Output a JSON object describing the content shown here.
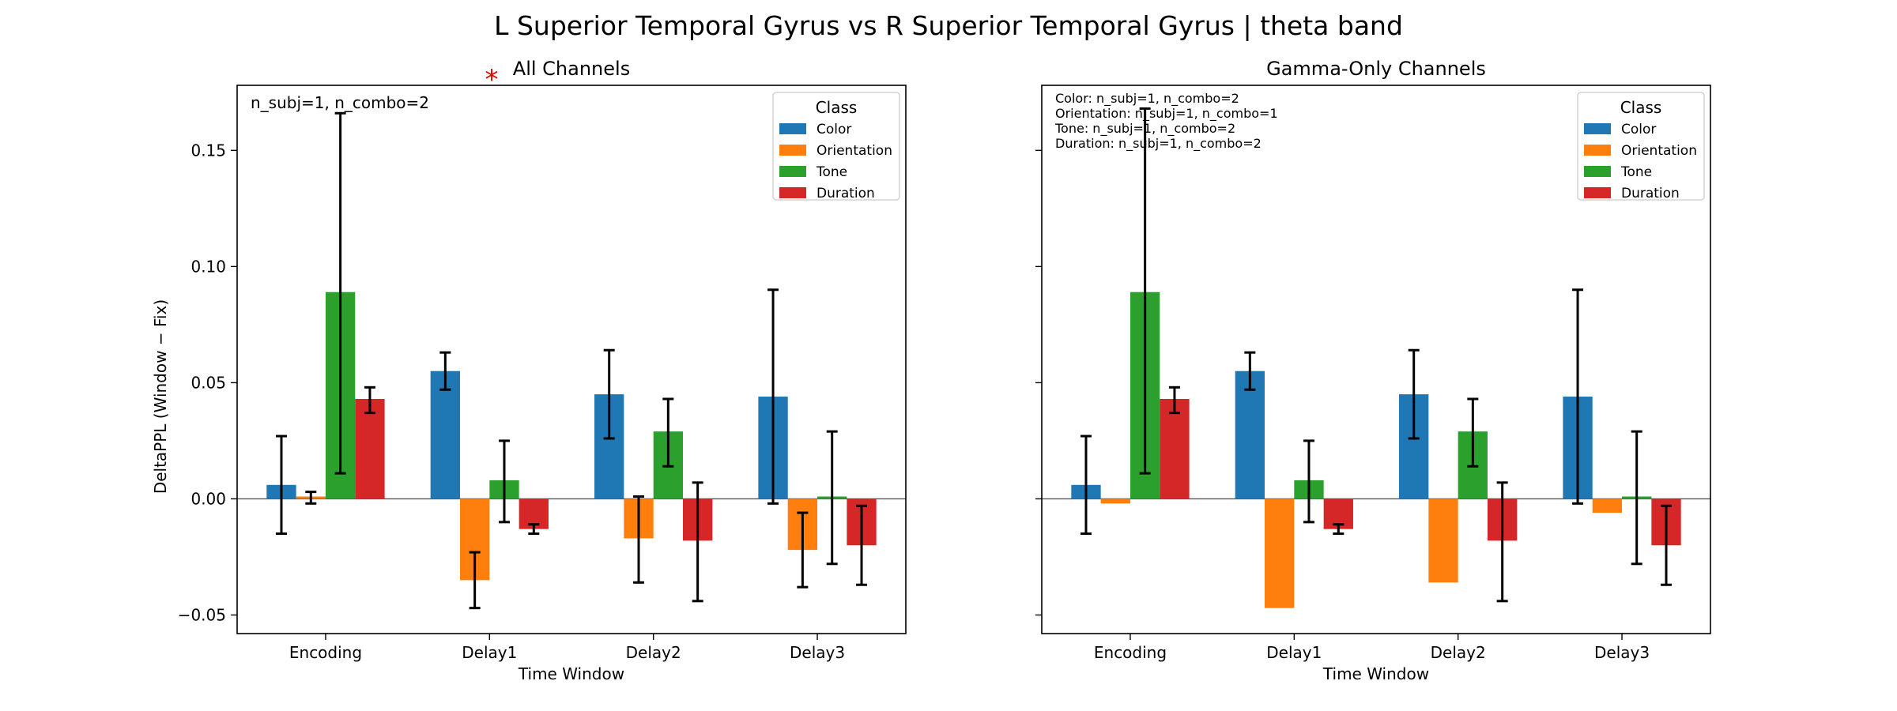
{
  "figure": {
    "title": "L Superior Temporal Gyrus vs R Superior Temporal Gyrus  |  theta band",
    "ylabel": "DeltaPPL (Window − Fix)",
    "xlabel": "Time Window"
  },
  "chart_data": [
    {
      "type": "bar",
      "title": "All Channels",
      "significance_marker": "*",
      "annotation": [
        "n_subj=1, n_combo=2"
      ],
      "xlabel": "Time Window",
      "ylabel": "DeltaPPL (Window − Fix)",
      "ylim": [
        -0.058,
        0.178
      ],
      "yticks": [
        -0.05,
        0.0,
        0.05,
        0.1,
        0.15
      ],
      "yticklabels": [
        "−0.05",
        "0.00",
        "0.05",
        "0.10",
        "0.15"
      ],
      "categories": [
        "Encoding",
        "Delay1",
        "Delay2",
        "Delay3"
      ],
      "legend": {
        "title": "Class",
        "position": "top-right"
      },
      "series": [
        {
          "name": "Color",
          "color": "#1f77b4",
          "values": [
            0.006,
            0.055,
            0.045,
            0.044
          ],
          "err_low": [
            -0.015,
            0.047,
            0.026,
            -0.002
          ],
          "err_high": [
            0.027,
            0.063,
            0.064,
            0.09
          ]
        },
        {
          "name": "Orientation",
          "color": "#ff7f0e",
          "values": [
            0.001,
            -0.035,
            -0.017,
            -0.022
          ],
          "err_low": [
            -0.002,
            -0.047,
            -0.036,
            -0.038
          ],
          "err_high": [
            0.003,
            -0.023,
            0.001,
            -0.006
          ]
        },
        {
          "name": "Tone",
          "color": "#2ca02c",
          "values": [
            0.089,
            0.008,
            0.029,
            0.001
          ],
          "err_low": [
            0.011,
            -0.01,
            0.014,
            -0.028
          ],
          "err_high": [
            0.166,
            0.025,
            0.043,
            0.029
          ]
        },
        {
          "name": "Duration",
          "color": "#d62728",
          "values": [
            0.043,
            -0.013,
            -0.018,
            -0.02
          ],
          "err_low": [
            0.037,
            -0.015,
            -0.044,
            -0.037
          ],
          "err_high": [
            0.048,
            -0.011,
            0.007,
            -0.003
          ]
        }
      ]
    },
    {
      "type": "bar",
      "title": "Gamma-Only Channels",
      "annotation": [
        "Color: n_subj=1, n_combo=2",
        "Orientation: n_subj=1, n_combo=1",
        "Tone: n_subj=1, n_combo=2",
        "Duration: n_subj=1, n_combo=2"
      ],
      "xlabel": "Time Window",
      "ylim": [
        -0.058,
        0.178
      ],
      "yticks": [
        -0.05,
        0.0,
        0.05,
        0.1,
        0.15
      ],
      "categories": [
        "Encoding",
        "Delay1",
        "Delay2",
        "Delay3"
      ],
      "legend": {
        "title": "Class",
        "position": "top-right"
      },
      "series": [
        {
          "name": "Color",
          "color": "#1f77b4",
          "values": [
            0.006,
            0.055,
            0.045,
            0.044
          ],
          "err_low": [
            -0.015,
            0.047,
            0.026,
            -0.002
          ],
          "err_high": [
            0.027,
            0.063,
            0.064,
            0.09
          ]
        },
        {
          "name": "Orientation",
          "color": "#ff7f0e",
          "values": [
            -0.002,
            -0.047,
            -0.036,
            -0.006
          ],
          "err_low": [
            null,
            null,
            null,
            null
          ],
          "err_high": [
            null,
            null,
            null,
            null
          ]
        },
        {
          "name": "Tone",
          "color": "#2ca02c",
          "values": [
            0.089,
            0.008,
            0.029,
            0.001
          ],
          "err_low": [
            0.011,
            -0.01,
            0.014,
            -0.028
          ],
          "err_high": [
            0.168,
            0.025,
            0.043,
            0.029
          ]
        },
        {
          "name": "Duration",
          "color": "#d62728",
          "values": [
            0.043,
            -0.013,
            -0.018,
            -0.02
          ],
          "err_low": [
            0.037,
            -0.015,
            -0.044,
            -0.037
          ],
          "err_high": [
            0.048,
            -0.011,
            0.007,
            -0.003
          ]
        }
      ]
    }
  ]
}
